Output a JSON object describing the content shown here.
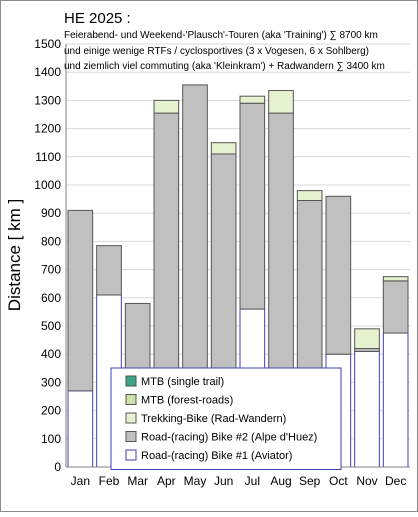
{
  "chart_data": {
    "type": "bar",
    "stacked": true,
    "title": "HE 2025 :",
    "subtitle_lines": [
      "Feierabend- und Weekend-'Plausch'-Touren (aka 'Training') ∑ 8700 km",
      "und einige wenige RTFs / cyclosportives (3 x Vogesen, 6 x Sohlberg)",
      "und ziemlich viel commuting (aka 'Kleinkram') + Radwandern ∑ 3400 km"
    ],
    "xlabel": "",
    "ylabel": "Distance [ km ]",
    "ylim": [
      0,
      1500
    ],
    "ytick_step": 100,
    "grid": true,
    "legend_position": "bottom-center",
    "categories": [
      "Jan",
      "Feb",
      "Mar",
      "Apr",
      "May",
      "Jun",
      "Jul",
      "Aug",
      "Sep",
      "Oct",
      "Nov",
      "Dec"
    ],
    "series": [
      {
        "name": "Road-(racing) Bike #1 (Aviator)",
        "color": "#ffffff",
        "edge": "#3f3fbf",
        "values": [
          270,
          610,
          0,
          25,
          0,
          0,
          560,
          30,
          25,
          400,
          410,
          475
        ]
      },
      {
        "name": "Road-(racing) Bike #2 (Alpe d'Huez)",
        "color": "#c0c0c0",
        "edge": "#555555",
        "values": [
          640,
          175,
          580,
          1230,
          1355,
          1110,
          730,
          1225,
          920,
          560,
          10,
          185
        ]
      },
      {
        "name": "Trekking-Bike (Rad-Wandern)",
        "color": "#e6f1cf",
        "edge": "#555555",
        "values": [
          0,
          0,
          0,
          45,
          0,
          40,
          25,
          80,
          35,
          0,
          70,
          15
        ]
      },
      {
        "name": "MTB (forest-roads)",
        "color": "#c9e3a9",
        "edge": "#555555",
        "values": [
          0,
          0,
          0,
          0,
          0,
          0,
          0,
          0,
          0,
          0,
          0,
          0
        ]
      },
      {
        "name": "MTB (single trail)",
        "color": "#3aa388",
        "edge": "#555555",
        "values": [
          0,
          0,
          0,
          0,
          0,
          0,
          0,
          0,
          0,
          0,
          0,
          0
        ]
      }
    ],
    "legend_order": [
      4,
      3,
      2,
      1,
      0
    ]
  }
}
